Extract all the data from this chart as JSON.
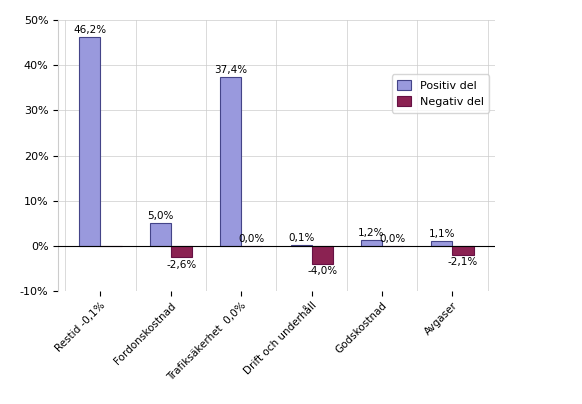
{
  "categories": [
    "Restid",
    "Fordonskostnad",
    "Trafiksäkerhet",
    "Drift och underhåll",
    "Godskostnad",
    "Avgaser"
  ],
  "positive_values": [
    46.2,
    5.0,
    37.4,
    0.1,
    1.2,
    1.1
  ],
  "negative_values": [
    -0.1,
    -2.6,
    0.0,
    -4.0,
    0.0,
    -2.1
  ],
  "positive_labels": [
    "46,2%",
    "5,0%",
    "37,4%",
    "0,1%",
    "1,2%",
    "1,1%"
  ],
  "negative_labels": [
    "-0,1%",
    "-2,6%",
    "0,0%",
    "-4,0%",
    "0,0%",
    "-2,1%"
  ],
  "xtick_labels": [
    "Restid -0,1%",
    "Fordonskostnad",
    "Trafiksäkerhet  0,0%",
    "Drift och underhåll",
    "Godskostnad",
    "Avgaser"
  ],
  "positive_color": "#9999dd",
  "negative_color": "#8b2252",
  "bar_width": 0.3,
  "ylim": [
    -10,
    50
  ],
  "yticks": [
    -10,
    0,
    10,
    20,
    30,
    40,
    50
  ],
  "legend_labels": [
    "Positiv del",
    "Negativ del"
  ],
  "background_color": "#ffffff",
  "grid_color": "#cccccc"
}
